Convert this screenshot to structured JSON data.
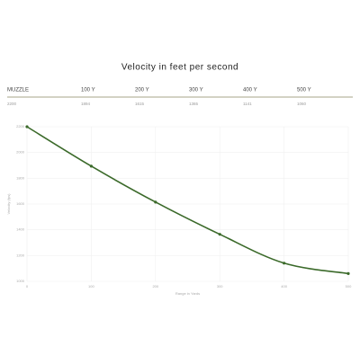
{
  "table": {
    "headers": [
      "MUZZLE",
      "100 Y",
      "200 Y",
      "300 Y",
      "400 Y",
      "500 Y"
    ]
  },
  "chart_data": {
    "type": "line",
    "title": "Velocity in feet per second",
    "x": [
      0,
      100,
      200,
      300,
      400,
      500
    ],
    "values": [
      2200,
      1894,
      1615,
      1365,
      1141,
      1060
    ],
    "color": "#3b6a2a",
    "xlim": [
      0,
      500
    ],
    "xticks": [
      0,
      100,
      200,
      300,
      400,
      500
    ],
    "ylim": [
      1000,
      2200
    ],
    "yticks": [
      1000,
      1200,
      1400,
      1600,
      1800,
      2000,
      2200
    ],
    "grid": true,
    "xlabel": "Range in Yards",
    "ylabel": "Velocity (fps)"
  }
}
